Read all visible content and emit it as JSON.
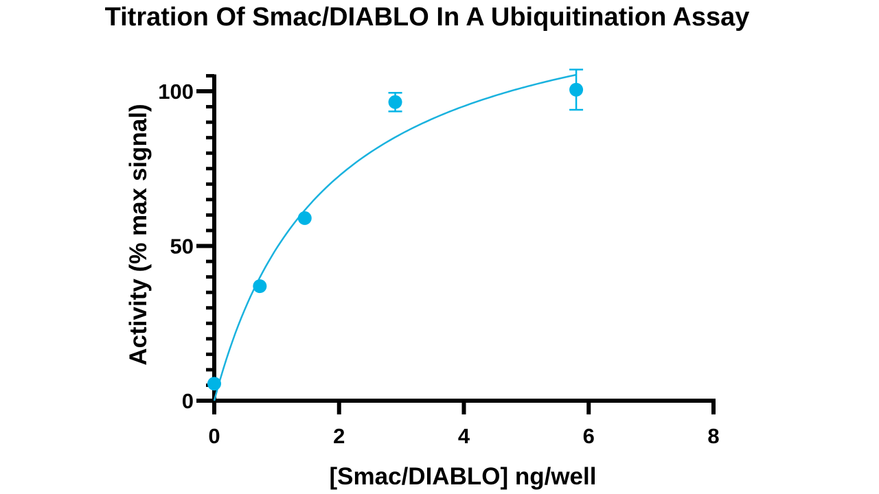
{
  "chart_data": {
    "type": "scatter",
    "title": "Titration Of Smac/DIABLO In A Ubiquitination Assay",
    "xlabel": "[Smac/DIABLO] ng/well",
    "ylabel": "Activity (% max signal)",
    "xlim": [
      0,
      8
    ],
    "ylim": [
      0,
      105
    ],
    "x_ticks": [
      0,
      2,
      4,
      6,
      8
    ],
    "x_tick_labels": [
      "0",
      "2",
      "4",
      "6",
      "8"
    ],
    "y_ticks": [
      0,
      50,
      100
    ],
    "y_tick_labels": [
      "0",
      "50",
      "100"
    ],
    "y_minor_step": 5,
    "grid": false,
    "color": "#00b4e6",
    "curve_color": "#1ab2de",
    "series": [
      {
        "points": [
          {
            "x": 0,
            "y": 5.5,
            "err": 0
          },
          {
            "x": 0.73,
            "y": 37,
            "err": 0
          },
          {
            "x": 1.45,
            "y": 59,
            "err": 0
          },
          {
            "x": 2.9,
            "y": 96.5,
            "err": 3
          },
          {
            "x": 5.8,
            "y": 100.5,
            "err": 6.5
          }
        ]
      }
    ],
    "fit": {
      "model": "hyperbolic",
      "x_range": [
        0,
        5.8
      ],
      "bmax": 138,
      "kd": 1.8,
      "y0": 0
    }
  }
}
